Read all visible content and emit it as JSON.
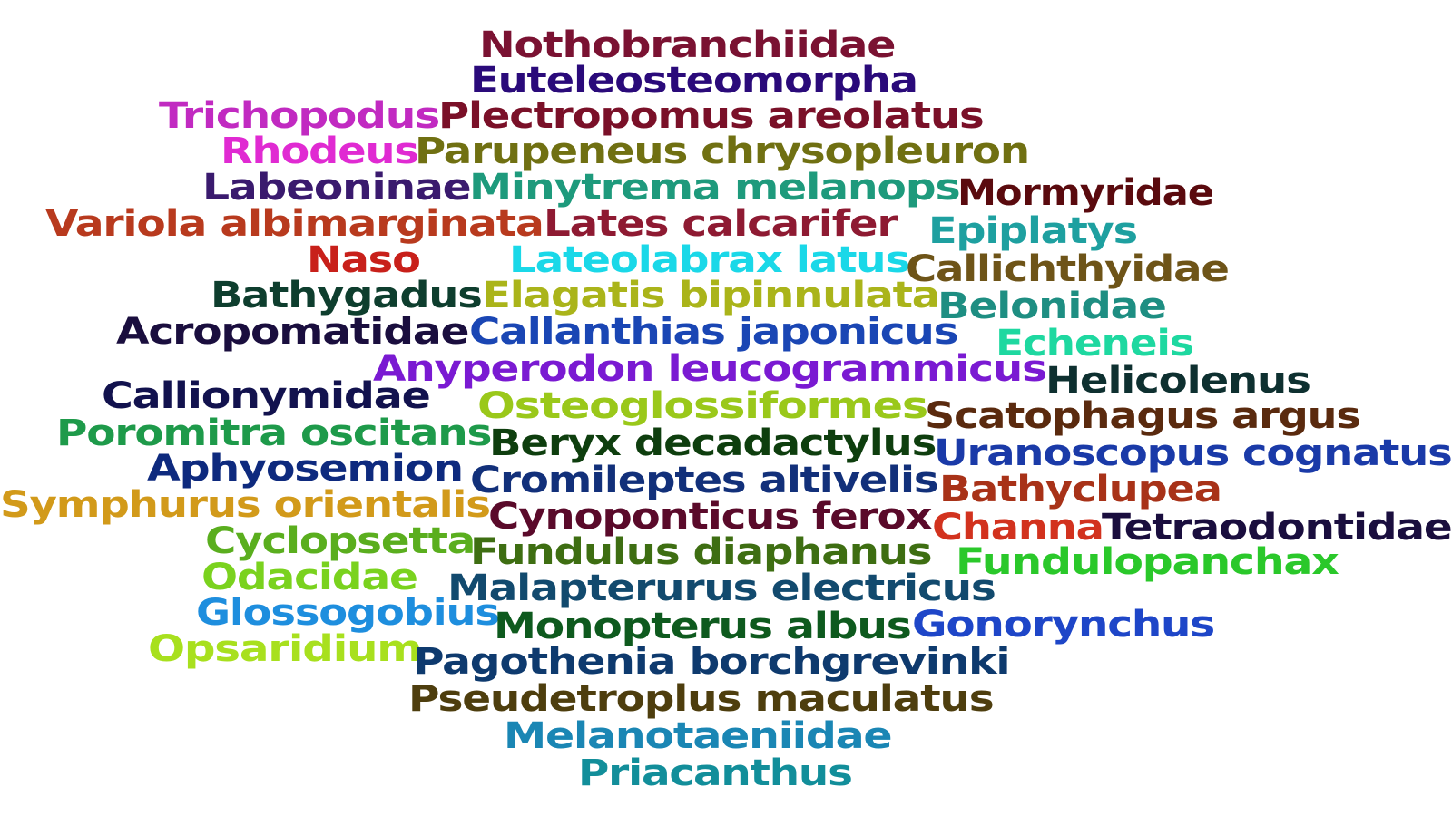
{
  "words": [
    {
      "text": "Nothobranchiidae",
      "color": "#7a1232"
    },
    {
      "text": "Euteleosteomorpha",
      "color": "#2a0a7a"
    },
    {
      "text": "Trichopodus",
      "color": "#c12ac1"
    },
    {
      "text": "Plectropomus areolatus",
      "color": "#7a1028"
    },
    {
      "text": "Rhodeus",
      "color": "#e02ad2"
    },
    {
      "text": "Parupeneus chrysopleuron",
      "color": "#707012"
    },
    {
      "text": "Labeoninae",
      "color": "#3a1a6e"
    },
    {
      "text": "Minytrema melanops",
      "color": "#1e9a7c"
    },
    {
      "text": "Mormyridae",
      "color": "#5a0a0e"
    },
    {
      "text": "Variola albimarginata",
      "color": "#b83a1e"
    },
    {
      "text": "Lates calcarifer",
      "color": "#8e1a32"
    },
    {
      "text": "Epiplatys",
      "color": "#1ea0a0"
    },
    {
      "text": "Naso",
      "color": "#c8201a"
    },
    {
      "text": "Lateolabrax latus",
      "color": "#1ad8e8"
    },
    {
      "text": "Callichthyidae",
      "color": "#6e5418"
    },
    {
      "text": "Bathygadus",
      "color": "#0e3e2e"
    },
    {
      "text": "Elagatis bipinnulata",
      "color": "#aab41a"
    },
    {
      "text": "Belonidae",
      "color": "#1e8e82"
    },
    {
      "text": "Acropomatidae",
      "color": "#1a0e3e"
    },
    {
      "text": "Callanthias japonicus",
      "color": "#1a46b4"
    },
    {
      "text": "Echeneis",
      "color": "#1ed8a0"
    },
    {
      "text": "Anyperodon leucogrammicus",
      "color": "#7a1ad2"
    },
    {
      "text": "Helicolenus",
      "color": "#0e3030"
    },
    {
      "text": "Callionymidae",
      "color": "#12124e"
    },
    {
      "text": "Osteoglossiformes",
      "color": "#9ac81a"
    },
    {
      "text": "Scatophagus argus",
      "color": "#5a2a0e"
    },
    {
      "text": "Poromitra oscitans",
      "color": "#1e9a4a"
    },
    {
      "text": "Beryx decadactylus",
      "color": "#0e3e0e"
    },
    {
      "text": "Uranoscopus cognatus",
      "color": "#1a3aa8"
    },
    {
      "text": "Aphyosemion",
      "color": "#0e2a7e"
    },
    {
      "text": "Cromileptes altivelis",
      "color": "#12307a"
    },
    {
      "text": "Bathyclupea",
      "color": "#a83218"
    },
    {
      "text": "Symphurus orientalis",
      "color": "#d29a1a"
    },
    {
      "text": "Cynoponticus ferox",
      "color": "#5a0a2a"
    },
    {
      "text": "Channa",
      "color": "#d2321e"
    },
    {
      "text": "Tetraodontidae",
      "color": "#1a0e3e"
    },
    {
      "text": "Cyclopsetta",
      "color": "#5aae1e"
    },
    {
      "text": "Fundulus diaphanus",
      "color": "#3e6e12"
    },
    {
      "text": "Fundulopanchax",
      "color": "#2ac82a"
    },
    {
      "text": "Odacidae",
      "color": "#7ad21e"
    },
    {
      "text": "Malapterurus electricus",
      "color": "#124a6e"
    },
    {
      "text": "Glossogobius",
      "color": "#1e8ede"
    },
    {
      "text": "Monopterus albus",
      "color": "#0e5a1e"
    },
    {
      "text": "Gonorynchus",
      "color": "#1e46c8"
    },
    {
      "text": "Opsaridium",
      "color": "#a8e01e"
    },
    {
      "text": "Pagothenia borchgrevinki",
      "color": "#0e3a6e"
    },
    {
      "text": "Pseudetroplus maculatus",
      "color": "#4e3e0e"
    },
    {
      "text": "Melanotaeniidae",
      "color": "#1a86b4"
    },
    {
      "text": "Priacanthus",
      "color": "#128e9a"
    }
  ]
}
